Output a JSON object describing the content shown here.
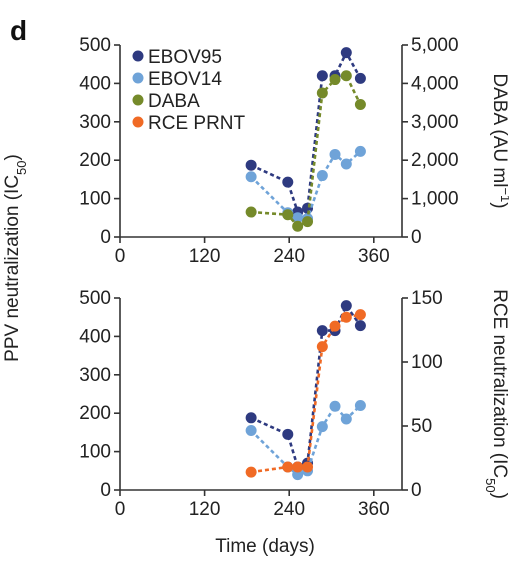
{
  "panel_label": "d",
  "colors": {
    "EBOV95": "#2e3a80",
    "EBOV14": "#6fa3d8",
    "DABA": "#758a2a",
    "RCE PRNT": "#f06a25"
  },
  "shared_y_title": {
    "main": "PPV neutralization (IC",
    "sub": "50",
    "end": ")"
  },
  "x_title": "Time (days)",
  "chart_data": [
    {
      "type": "line",
      "panel": "top",
      "x_ticks": [
        "0",
        "120",
        "240",
        "360"
      ],
      "xlim": [
        0,
        400
      ],
      "y_left_ticks": [
        "0",
        "100",
        "200",
        "300",
        "400",
        "500"
      ],
      "ylim_left": [
        0,
        500
      ],
      "y_right_ticks": [
        "0",
        "1,000",
        "2,000",
        "3,000",
        "4,000",
        "5,000"
      ],
      "ylim_right": [
        0,
        5000
      ],
      "y_right_title": {
        "main": "DABA (AU ml",
        "sup": "−1",
        "end": ")"
      },
      "legend": [
        "EBOV95",
        "EBOV14",
        "DABA",
        "RCE PRNT"
      ],
      "series": [
        {
          "name": "EBOV95",
          "axis": "left",
          "x": [
            186,
            238,
            252,
            266,
            287,
            305,
            321,
            341
          ],
          "y": [
            187,
            143,
            65,
            75,
            420,
            420,
            480,
            413
          ]
        },
        {
          "name": "EBOV14",
          "axis": "left",
          "x": [
            186,
            238,
            252,
            266,
            287,
            305,
            321,
            341
          ],
          "y": [
            157,
            63,
            50,
            48,
            160,
            215,
            190,
            223
          ]
        },
        {
          "name": "DABA",
          "axis": "right",
          "x": [
            186,
            238,
            252,
            266,
            287,
            305,
            321,
            341
          ],
          "y": [
            650,
            580,
            280,
            400,
            3750,
            4100,
            4200,
            3450
          ]
        }
      ]
    },
    {
      "type": "line",
      "panel": "bottom",
      "x_ticks": [
        "0",
        "120",
        "240",
        "360"
      ],
      "xlim": [
        0,
        400
      ],
      "y_left_ticks": [
        "0",
        "100",
        "200",
        "300",
        "400",
        "500"
      ],
      "ylim_left": [
        0,
        500
      ],
      "y_right_ticks": [
        "0",
        "50",
        "100",
        "150"
      ],
      "ylim_right": [
        0,
        150
      ],
      "y_right_title": {
        "main": "RCE neutralization (IC",
        "sub": "50",
        "end": ")"
      },
      "series": [
        {
          "name": "EBOV95",
          "axis": "left",
          "x": [
            186,
            238,
            252,
            266,
            287,
            305,
            321,
            341
          ],
          "y": [
            188,
            145,
            60,
            70,
            415,
            415,
            480,
            428
          ]
        },
        {
          "name": "EBOV14",
          "axis": "left",
          "x": [
            186,
            238,
            252,
            266,
            287,
            305,
            321,
            341
          ],
          "y": [
            155,
            60,
            40,
            50,
            165,
            218,
            185,
            220
          ]
        },
        {
          "name": "RCE PRNT",
          "axis": "right",
          "x": [
            186,
            238,
            252,
            266,
            287,
            305,
            321,
            341
          ],
          "y": [
            14,
            18,
            18,
            18,
            112,
            128,
            135,
            137
          ]
        }
      ]
    }
  ]
}
